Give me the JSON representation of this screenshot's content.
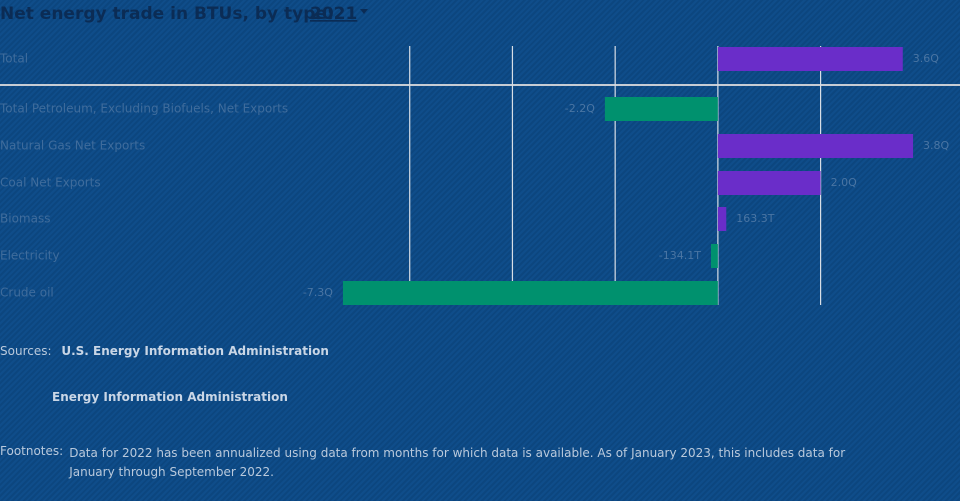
{
  "chart_data": {
    "type": "bar",
    "orientation": "horizontal",
    "title": "Net energy trade in BTUs, by type:",
    "year_selector": "2021",
    "categories": [
      "Total",
      "Total Petroleum, Excluding Biofuels, Net Exports",
      "Natural Gas Net Exports",
      "Coal Net Exports",
      "Biomass",
      "Electricity",
      "Crude oil"
    ],
    "values": [
      3.6,
      -2.2,
      3.8,
      2.0,
      0.1633,
      -0.1341,
      -7.3
    ],
    "value_labels": [
      "3.6Q",
      "-2.2Q",
      "3.8Q",
      "2.0Q",
      "163.3T",
      "-134.1T",
      "-7.3Q"
    ],
    "colors": [
      "#6a2dc9",
      "#00916e",
      "#6a2dc9",
      "#6a2dc9",
      "#6a2dc9",
      "#00916e",
      "#00916e"
    ],
    "xlim": [
      -8,
      4.5
    ],
    "xticks": [
      -6,
      -4,
      -2,
      0,
      2
    ],
    "grid": true
  },
  "sources": {
    "label": "Sources:",
    "items": [
      "U.S. Energy Information Administration",
      "Energy Information Administration"
    ]
  },
  "footnotes": {
    "label": "Footnotes:",
    "text": "Data for 2022 has been annualized using data from months for which data is available. As of January 2023, this includes data for January through September 2022."
  }
}
